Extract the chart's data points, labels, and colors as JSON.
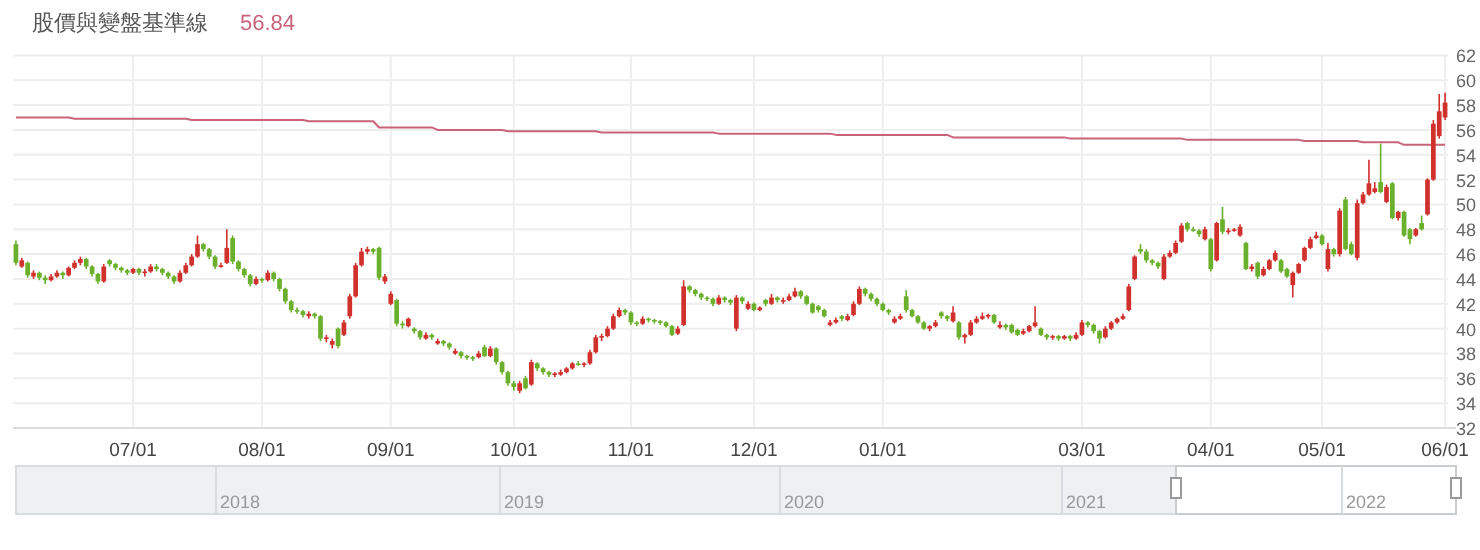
{
  "chart_data": {
    "type": "candlestick",
    "categories": [
      null,
      null,
      null,
      null,
      null,
      null,
      null,
      null,
      null,
      null,
      null,
      null,
      null,
      null,
      null,
      null,
      null,
      null,
      null,
      null,
      "07/01",
      null,
      null,
      null,
      null,
      null,
      null,
      null,
      null,
      null,
      null,
      null,
      null,
      null,
      null,
      null,
      null,
      null,
      null,
      null,
      null,
      null,
      "08/01",
      null,
      null,
      null,
      null,
      null,
      null,
      null,
      null,
      null,
      null,
      null,
      null,
      null,
      null,
      null,
      null,
      null,
      null,
      null,
      null,
      null,
      "09/01",
      null,
      null,
      null,
      null,
      null,
      null,
      null,
      null,
      null,
      null,
      null,
      null,
      null,
      null,
      null,
      null,
      null,
      null,
      null,
      null,
      "10/01",
      null,
      null,
      null,
      null,
      null,
      null,
      null,
      null,
      null,
      null,
      null,
      null,
      null,
      null,
      null,
      null,
      null,
      null,
      null,
      "11/01",
      null,
      null,
      null,
      null,
      null,
      null,
      null,
      null,
      null,
      null,
      null,
      null,
      null,
      null,
      null,
      null,
      null,
      null,
      null,
      null,
      "12/01",
      null,
      null,
      null,
      null,
      null,
      null,
      null,
      null,
      null,
      null,
      null,
      null,
      null,
      null,
      null,
      null,
      null,
      null,
      null,
      null,
      null,
      "01/01",
      null,
      null,
      null,
      null,
      null,
      null,
      null,
      null,
      null,
      null,
      null,
      null,
      null,
      null,
      null,
      null,
      null,
      null,
      null,
      null,
      null,
      null,
      null,
      null,
      null,
      null,
      null,
      null,
      null,
      null,
      null,
      null,
      null,
      "03/01",
      null,
      null,
      null,
      null,
      null,
      null,
      null,
      null,
      null,
      null,
      null,
      null,
      null,
      null,
      null,
      null,
      null,
      null,
      null,
      null,
      null,
      "04/01",
      null,
      null,
      null,
      null,
      null,
      null,
      null,
      null,
      null,
      null,
      null,
      null,
      null,
      null,
      null,
      null,
      null,
      null,
      "05/01",
      null,
      null,
      null,
      null,
      null,
      null,
      null,
      null,
      null,
      null,
      null,
      null,
      null,
      null,
      null,
      null,
      null,
      null,
      null,
      null,
      "06/01"
    ],
    "ohlc": [
      [
        46.8,
        47.1,
        45.1,
        45.3
      ],
      [
        45.0,
        45.7,
        44.9,
        45.5
      ],
      [
        45.3,
        45.4,
        44.1,
        44.3
      ],
      [
        44.2,
        44.7,
        44.0,
        44.5
      ],
      [
        44.5,
        44.6,
        43.9,
        44.1
      ],
      [
        44.1,
        44.3,
        43.6,
        43.9
      ],
      [
        43.9,
        44.4,
        43.8,
        44.2
      ],
      [
        44.2,
        44.7,
        44.1,
        44.5
      ],
      [
        44.5,
        44.6,
        44.0,
        44.3
      ],
      [
        44.3,
        45.0,
        44.2,
        44.9
      ],
      [
        44.9,
        45.5,
        44.8,
        45.3
      ],
      [
        45.3,
        45.8,
        45.1,
        45.6
      ],
      [
        45.6,
        45.7,
        44.8,
        45.0
      ],
      [
        45.0,
        45.1,
        44.2,
        44.4
      ],
      [
        44.4,
        44.5,
        43.6,
        43.8
      ],
      [
        43.8,
        45.2,
        43.7,
        45.0
      ],
      [
        45.5,
        45.6,
        45.0,
        45.2
      ],
      [
        45.2,
        45.3,
        44.7,
        44.9
      ],
      [
        44.9,
        45.0,
        44.5,
        44.7
      ],
      [
        44.7,
        44.8,
        44.3,
        44.5
      ],
      [
        44.5,
        44.9,
        44.4,
        44.8
      ],
      [
        44.8,
        44.9,
        44.3,
        44.5
      ],
      [
        44.5,
        44.8,
        44.2,
        44.6
      ],
      [
        44.6,
        45.2,
        44.5,
        45.0
      ],
      [
        45.0,
        45.2,
        44.6,
        44.8
      ],
      [
        44.8,
        44.9,
        44.3,
        44.5
      ],
      [
        44.5,
        44.6,
        44.0,
        44.2
      ],
      [
        44.2,
        44.3,
        43.6,
        43.8
      ],
      [
        43.8,
        44.7,
        43.7,
        44.5
      ],
      [
        44.5,
        45.3,
        44.4,
        45.1
      ],
      [
        45.1,
        46.0,
        45.0,
        45.8
      ],
      [
        45.8,
        47.5,
        45.7,
        46.8
      ],
      [
        46.8,
        46.9,
        46.2,
        46.4
      ],
      [
        46.4,
        46.5,
        45.6,
        45.8
      ],
      [
        45.8,
        45.9,
        44.8,
        45.0
      ],
      [
        45.0,
        45.3,
        44.9,
        45.1
      ],
      [
        45.3,
        48.0,
        45.2,
        46.5
      ],
      [
        47.3,
        47.5,
        45.2,
        45.4
      ],
      [
        45.4,
        45.5,
        44.6,
        44.8
      ],
      [
        44.8,
        44.9,
        44.1,
        44.3
      ],
      [
        44.3,
        44.4,
        43.4,
        43.6
      ],
      [
        43.6,
        44.2,
        43.5,
        44.0
      ],
      [
        44.0,
        44.1,
        43.7,
        43.9
      ],
      [
        43.9,
        44.7,
        43.8,
        44.5
      ],
      [
        44.5,
        44.6,
        43.8,
        44.0
      ],
      [
        44.0,
        44.1,
        43.0,
        43.2
      ],
      [
        43.2,
        43.3,
        42.0,
        42.2
      ],
      [
        42.2,
        42.3,
        41.3,
        41.5
      ],
      [
        41.5,
        41.7,
        41.2,
        41.4
      ],
      [
        41.4,
        41.5,
        40.9,
        41.1
      ],
      [
        41.0,
        41.4,
        40.8,
        41.2
      ],
      [
        41.2,
        41.3,
        40.8,
        41.0
      ],
      [
        41.0,
        41.1,
        39.0,
        39.2
      ],
      [
        39.2,
        39.5,
        38.9,
        39.3
      ],
      [
        38.7,
        39.2,
        38.4,
        39.0
      ],
      [
        40.0,
        40.1,
        38.4,
        38.6
      ],
      [
        39.5,
        40.7,
        39.4,
        40.5
      ],
      [
        41.0,
        42.8,
        40.8,
        42.6
      ],
      [
        42.6,
        45.3,
        42.5,
        45.1
      ],
      [
        45.1,
        46.5,
        45.0,
        46.2
      ],
      [
        46.2,
        46.6,
        46.0,
        46.4
      ],
      [
        46.4,
        46.5,
        46.0,
        46.2
      ],
      [
        46.5,
        46.6,
        43.9,
        44.1
      ],
      [
        43.8,
        44.4,
        43.6,
        44.2
      ],
      [
        42.0,
        43.0,
        41.9,
        42.8
      ],
      [
        42.3,
        42.4,
        40.2,
        40.4
      ],
      [
        40.4,
        40.6,
        40.0,
        40.3
      ],
      [
        40.2,
        40.9,
        40.1,
        40.8
      ],
      [
        40.0,
        40.1,
        39.6,
        39.8
      ],
      [
        39.8,
        39.9,
        39.1,
        39.3
      ],
      [
        39.2,
        39.7,
        39.1,
        39.5
      ],
      [
        39.5,
        39.6,
        39.1,
        39.3
      ],
      [
        38.8,
        39.2,
        38.7,
        39.0
      ],
      [
        39.0,
        39.1,
        38.6,
        38.8
      ],
      [
        38.8,
        38.9,
        38.3,
        38.5
      ],
      [
        38.0,
        38.4,
        37.9,
        38.2
      ],
      [
        38.1,
        38.2,
        37.6,
        37.8
      ],
      [
        37.8,
        37.9,
        37.5,
        37.7
      ],
      [
        37.7,
        37.8,
        37.4,
        37.6
      ],
      [
        37.7,
        38.2,
        37.6,
        38.0
      ],
      [
        38.5,
        38.7,
        37.7,
        37.8
      ],
      [
        37.8,
        38.6,
        37.7,
        38.4
      ],
      [
        38.4,
        38.5,
        37.1,
        37.3
      ],
      [
        37.3,
        37.4,
        36.3,
        36.5
      ],
      [
        36.5,
        36.6,
        35.4,
        35.6
      ],
      [
        35.6,
        35.8,
        35.0,
        35.3
      ],
      [
        35.0,
        35.8,
        34.8,
        35.6
      ],
      [
        36.0,
        36.2,
        35.1,
        35.2
      ],
      [
        35.5,
        37.5,
        35.4,
        37.3
      ],
      [
        37.2,
        37.3,
        36.6,
        36.8
      ],
      [
        36.8,
        36.9,
        36.3,
        36.5
      ],
      [
        36.5,
        36.6,
        36.1,
        36.3
      ],
      [
        36.3,
        36.5,
        36.1,
        36.4
      ],
      [
        36.3,
        36.7,
        36.2,
        36.5
      ],
      [
        36.5,
        36.9,
        36.4,
        36.8
      ],
      [
        36.8,
        37.3,
        36.7,
        37.2
      ],
      [
        37.2,
        37.4,
        37.0,
        37.1
      ],
      [
        37.1,
        37.3,
        36.9,
        37.2
      ],
      [
        37.2,
        38.3,
        37.1,
        38.1
      ],
      [
        38.1,
        39.5,
        38.0,
        39.3
      ],
      [
        39.3,
        39.6,
        39.0,
        39.4
      ],
      [
        39.4,
        40.2,
        39.3,
        40.0
      ],
      [
        40.0,
        41.2,
        39.9,
        41.0
      ],
      [
        41.0,
        41.7,
        40.9,
        41.5
      ],
      [
        41.5,
        41.6,
        41.1,
        41.3
      ],
      [
        41.3,
        41.4,
        40.3,
        40.5
      ],
      [
        40.5,
        40.6,
        40.2,
        40.4
      ],
      [
        40.4,
        41.0,
        40.3,
        40.8
      ],
      [
        40.8,
        40.9,
        40.5,
        40.7
      ],
      [
        40.7,
        40.8,
        40.4,
        40.6
      ],
      [
        40.6,
        40.7,
        40.3,
        40.5
      ],
      [
        40.5,
        40.6,
        40.1,
        40.2
      ],
      [
        40.2,
        40.3,
        39.4,
        39.5
      ],
      [
        39.6,
        40.2,
        39.5,
        40.0
      ],
      [
        40.3,
        43.9,
        40.2,
        43.4
      ],
      [
        43.4,
        43.5,
        42.9,
        43.1
      ],
      [
        43.1,
        43.2,
        42.6,
        42.8
      ],
      [
        42.8,
        42.9,
        42.3,
        42.5
      ],
      [
        42.5,
        42.6,
        42.2,
        42.4
      ],
      [
        42.4,
        42.5,
        41.8,
        42.0
      ],
      [
        42.0,
        42.7,
        41.9,
        42.5
      ],
      [
        42.5,
        42.6,
        42.1,
        42.3
      ],
      [
        42.3,
        42.4,
        41.9,
        42.1
      ],
      [
        40.0,
        42.7,
        39.8,
        42.5
      ],
      [
        42.5,
        42.6,
        42.0,
        42.2
      ],
      [
        41.6,
        42.2,
        41.5,
        42.0
      ],
      [
        42.0,
        42.1,
        41.4,
        41.5
      ],
      [
        41.5,
        41.8,
        41.4,
        41.7
      ],
      [
        42.3,
        42.4,
        41.8,
        42.0
      ],
      [
        42.0,
        42.8,
        41.9,
        42.5
      ],
      [
        42.5,
        42.6,
        42.1,
        42.3
      ],
      [
        42.3,
        42.5,
        42.0,
        42.3
      ],
      [
        42.3,
        42.8,
        42.2,
        42.6
      ],
      [
        42.6,
        43.3,
        42.5,
        43.0
      ],
      [
        43.0,
        43.1,
        42.4,
        42.6
      ],
      [
        42.6,
        42.7,
        41.9,
        42.0
      ],
      [
        42.0,
        42.1,
        41.2,
        41.3
      ],
      [
        41.8,
        41.9,
        41.3,
        41.5
      ],
      [
        41.5,
        41.6,
        40.9,
        41.0
      ],
      [
        40.3,
        40.7,
        40.2,
        40.5
      ],
      [
        40.5,
        40.9,
        40.4,
        40.7
      ],
      [
        41.0,
        41.1,
        40.6,
        40.8
      ],
      [
        40.7,
        41.2,
        40.6,
        41.0
      ],
      [
        41.1,
        42.2,
        41.0,
        42.0
      ],
      [
        42.0,
        43.4,
        41.9,
        43.2
      ],
      [
        43.2,
        43.3,
        42.6,
        42.8
      ],
      [
        42.8,
        42.9,
        42.2,
        42.4
      ],
      [
        42.4,
        42.5,
        41.8,
        42.0
      ],
      [
        42.0,
        42.1,
        41.4,
        41.5
      ],
      [
        41.5,
        41.6,
        41.1,
        41.3
      ],
      [
        40.5,
        41.0,
        40.4,
        40.8
      ],
      [
        40.8,
        41.2,
        40.7,
        41.0
      ],
      [
        42.6,
        43.1,
        41.3,
        41.5
      ],
      [
        41.5,
        41.6,
        40.9,
        41.0
      ],
      [
        41.0,
        41.1,
        40.4,
        40.5
      ],
      [
        40.5,
        40.6,
        39.9,
        40.0
      ],
      [
        40.0,
        40.3,
        39.8,
        40.2
      ],
      [
        40.2,
        40.7,
        40.1,
        40.5
      ],
      [
        41.3,
        41.4,
        40.8,
        41.0
      ],
      [
        41.0,
        41.1,
        40.6,
        40.8
      ],
      [
        40.6,
        41.8,
        40.5,
        41.3
      ],
      [
        40.5,
        40.6,
        39.1,
        39.3
      ],
      [
        39.3,
        39.6,
        38.8,
        39.5
      ],
      [
        39.5,
        40.7,
        39.4,
        40.5
      ],
      [
        40.5,
        41.0,
        40.4,
        40.8
      ],
      [
        40.8,
        41.3,
        40.7,
        41.0
      ],
      [
        41.0,
        41.2,
        40.8,
        41.1
      ],
      [
        41.1,
        41.2,
        40.4,
        40.5
      ],
      [
        40.1,
        40.6,
        40.0,
        40.3
      ],
      [
        40.3,
        40.4,
        39.9,
        40.1
      ],
      [
        40.3,
        40.4,
        39.6,
        39.7
      ],
      [
        39.9,
        40.0,
        39.4,
        39.5
      ],
      [
        39.6,
        40.0,
        39.5,
        39.8
      ],
      [
        39.8,
        40.3,
        39.7,
        40.2
      ],
      [
        40.2,
        41.8,
        40.1,
        40.5
      ],
      [
        40.0,
        40.1,
        39.4,
        39.5
      ],
      [
        39.5,
        39.6,
        39.1,
        39.3
      ],
      [
        39.3,
        39.5,
        39.1,
        39.4
      ],
      [
        39.4,
        39.5,
        39.0,
        39.2
      ],
      [
        39.2,
        39.5,
        39.1,
        39.4
      ],
      [
        39.4,
        39.5,
        39.0,
        39.2
      ],
      [
        39.2,
        39.7,
        39.1,
        39.5
      ],
      [
        39.5,
        40.7,
        39.4,
        40.5
      ],
      [
        40.5,
        40.6,
        40.1,
        40.3
      ],
      [
        40.3,
        40.4,
        39.6,
        39.8
      ],
      [
        39.8,
        39.9,
        38.8,
        39.2
      ],
      [
        39.3,
        40.2,
        39.2,
        40.0
      ],
      [
        40.0,
        40.6,
        39.9,
        40.5
      ],
      [
        40.5,
        40.9,
        40.4,
        40.8
      ],
      [
        40.8,
        41.2,
        40.7,
        41.0
      ],
      [
        41.5,
        43.6,
        41.4,
        43.4
      ],
      [
        44.0,
        45.9,
        43.9,
        45.8
      ],
      [
        46.4,
        46.8,
        46.0,
        46.2
      ],
      [
        46.2,
        46.4,
        45.3,
        45.5
      ],
      [
        45.5,
        45.6,
        45.1,
        45.3
      ],
      [
        45.3,
        45.4,
        44.8,
        45.0
      ],
      [
        44.0,
        46.0,
        43.9,
        45.8
      ],
      [
        45.8,
        46.3,
        45.7,
        46.1
      ],
      [
        46.1,
        47.1,
        46.0,
        46.9
      ],
      [
        47.0,
        48.5,
        46.9,
        48.3
      ],
      [
        48.5,
        48.6,
        47.8,
        48.0
      ],
      [
        48.0,
        48.2,
        47.8,
        47.9
      ],
      [
        47.9,
        48.0,
        47.4,
        47.6
      ],
      [
        47.2,
        48.2,
        47.1,
        48.0
      ],
      [
        47.2,
        47.3,
        44.6,
        44.8
      ],
      [
        45.5,
        48.6,
        45.4,
        48.5
      ],
      [
        48.8,
        49.8,
        47.6,
        47.8
      ],
      [
        47.8,
        48.1,
        47.6,
        47.9
      ],
      [
        47.9,
        48.1,
        47.8,
        48.0
      ],
      [
        47.5,
        48.4,
        47.4,
        48.2
      ],
      [
        46.9,
        47.0,
        44.7,
        44.8
      ],
      [
        44.8,
        45.2,
        44.6,
        45.0
      ],
      [
        45.3,
        45.4,
        44.0,
        44.2
      ],
      [
        44.3,
        45.0,
        44.2,
        44.8
      ],
      [
        44.8,
        45.6,
        44.7,
        45.5
      ],
      [
        45.5,
        46.3,
        45.4,
        46.1
      ],
      [
        45.5,
        45.6,
        44.5,
        44.6
      ],
      [
        44.8,
        44.9,
        44.1,
        44.2
      ],
      [
        43.5,
        44.6,
        42.5,
        44.5
      ],
      [
        44.5,
        45.3,
        44.4,
        45.2
      ],
      [
        45.5,
        46.6,
        45.4,
        46.5
      ],
      [
        46.5,
        47.4,
        46.4,
        47.2
      ],
      [
        47.3,
        47.8,
        47.2,
        47.5
      ],
      [
        47.5,
        47.6,
        46.7,
        46.8
      ],
      [
        44.8,
        46.9,
        44.6,
        46.4
      ],
      [
        46.4,
        46.5,
        45.8,
        46.0
      ],
      [
        46.0,
        49.7,
        45.8,
        49.5
      ],
      [
        50.4,
        50.6,
        46.3,
        46.4
      ],
      [
        46.8,
        47.0,
        45.9,
        46.0
      ],
      [
        45.7,
        50.4,
        45.5,
        50.1
      ],
      [
        50.1,
        51.0,
        50.0,
        50.8
      ],
      [
        50.8,
        53.6,
        50.7,
        51.7
      ],
      [
        51.0,
        51.8,
        50.9,
        51.3
      ],
      [
        51.8,
        54.9,
        50.9,
        51.0
      ],
      [
        50.2,
        51.6,
        50.1,
        51.4
      ],
      [
        51.7,
        51.8,
        48.8,
        48.9
      ],
      [
        48.9,
        49.5,
        48.7,
        49.4
      ],
      [
        49.4,
        49.5,
        47.4,
        47.5
      ],
      [
        48.0,
        48.1,
        46.8,
        47.2
      ],
      [
        47.5,
        48.1,
        47.4,
        48.0
      ],
      [
        48.5,
        49.1,
        47.9,
        48.0
      ],
      [
        49.2,
        52.1,
        49.1,
        52.0
      ],
      [
        52.0,
        56.8,
        51.9,
        56.5
      ],
      [
        55.5,
        58.9,
        55.3,
        57.5
      ],
      [
        57.0,
        59.0,
        56.8,
        58.2
      ]
    ],
    "colors": [
      "#6ab02c",
      "#d0312d",
      "#6ab02c",
      "#d0312d",
      "#6ab02c",
      "#6ab02c",
      "#d0312d",
      "#d0312d",
      "#6ab02c",
      "#d0312d",
      "#d0312d",
      "#d0312d",
      "#6ab02c",
      "#6ab02c",
      "#6ab02c",
      "#d0312d",
      "#6ab02c",
      "#6ab02c",
      "#6ab02c",
      "#6ab02c",
      "#d0312d",
      "#6ab02c",
      "#d0312d",
      "#d0312d",
      "#6ab02c",
      "#6ab02c",
      "#6ab02c",
      "#6ab02c",
      "#d0312d",
      "#d0312d",
      "#d0312d",
      "#d0312d",
      "#6ab02c",
      "#6ab02c",
      "#6ab02c",
      "#d0312d",
      "#d0312d",
      "#6ab02c",
      "#6ab02c",
      "#6ab02c",
      "#6ab02c",
      "#d0312d",
      "#6ab02c",
      "#d0312d",
      "#6ab02c",
      "#6ab02c",
      "#6ab02c",
      "#6ab02c",
      "#6ab02c",
      "#6ab02c",
      "#d0312d",
      "#6ab02c",
      "#6ab02c",
      "#d0312d",
      "#d0312d",
      "#6ab02c",
      "#d0312d",
      "#d0312d",
      "#d0312d",
      "#d0312d",
      "#d0312d",
      "#6ab02c",
      "#6ab02c",
      "#d0312d",
      "#d0312d",
      "#6ab02c",
      "#6ab02c",
      "#d0312d",
      "#6ab02c",
      "#6ab02c",
      "#d0312d",
      "#6ab02c",
      "#d0312d",
      "#6ab02c",
      "#6ab02c",
      "#d0312d",
      "#6ab02c",
      "#6ab02c",
      "#6ab02c",
      "#d0312d",
      "#6ab02c",
      "#d0312d",
      "#6ab02c",
      "#6ab02c",
      "#6ab02c",
      "#6ab02c",
      "#d0312d",
      "#6ab02c",
      "#d0312d",
      "#6ab02c",
      "#6ab02c",
      "#6ab02c",
      "#d0312d",
      "#d0312d",
      "#d0312d",
      "#d0312d",
      "#6ab02c",
      "#d0312d",
      "#d0312d",
      "#d0312d",
      "#d0312d",
      "#d0312d",
      "#d0312d",
      "#d0312d",
      "#6ab02c",
      "#6ab02c",
      "#6ab02c",
      "#d0312d",
      "#6ab02c",
      "#6ab02c",
      "#6ab02c",
      "#6ab02c",
      "#6ab02c",
      "#d0312d",
      "#d0312d",
      "#6ab02c",
      "#6ab02c",
      "#6ab02c",
      "#6ab02c",
      "#6ab02c",
      "#d0312d",
      "#6ab02c",
      "#6ab02c",
      "#d0312d",
      "#6ab02c",
      "#d0312d",
      "#6ab02c",
      "#d0312d",
      "#6ab02c",
      "#d0312d",
      "#6ab02c",
      "#d0312d",
      "#d0312d",
      "#d0312d",
      "#6ab02c",
      "#6ab02c",
      "#6ab02c",
      "#6ab02c",
      "#6ab02c",
      "#d0312d",
      "#d0312d",
      "#6ab02c",
      "#d0312d",
      "#d0312d",
      "#d0312d",
      "#6ab02c",
      "#6ab02c",
      "#6ab02c",
      "#6ab02c",
      "#6ab02c",
      "#d0312d",
      "#d0312d",
      "#6ab02c",
      "#6ab02c",
      "#6ab02c",
      "#6ab02c",
      "#d0312d",
      "#d0312d",
      "#6ab02c",
      "#6ab02c",
      "#d0312d",
      "#6ab02c",
      "#d0312d",
      "#d0312d",
      "#d0312d",
      "#d0312d",
      "#d0312d",
      "#6ab02c",
      "#d0312d",
      "#6ab02c",
      "#6ab02c",
      "#6ab02c",
      "#d0312d",
      "#d0312d",
      "#d0312d",
      "#6ab02c",
      "#6ab02c",
      "#d0312d",
      "#6ab02c",
      "#d0312d",
      "#6ab02c",
      "#d0312d",
      "#d0312d",
      "#6ab02c",
      "#6ab02c",
      "#6ab02c",
      "#d0312d",
      "#d0312d",
      "#d0312d",
      "#d0312d",
      "#d0312d",
      "#d0312d",
      "#6ab02c",
      "#6ab02c",
      "#6ab02c",
      "#6ab02c",
      "#d0312d",
      "#d0312d",
      "#d0312d",
      "#d0312d",
      "#6ab02c",
      "#6ab02c",
      "#6ab02c",
      "#d0312d",
      "#6ab02c",
      "#d0312d",
      "#6ab02c",
      "#d0312d",
      "#d0312d",
      "#d0312d",
      "#6ab02c",
      "#d0312d",
      "#6ab02c",
      "#d0312d",
      "#d0312d",
      "#d0312d",
      "#6ab02c",
      "#6ab02c",
      "#d0312d",
      "#d0312d",
      "#d0312d",
      "#d0312d",
      "#d0312d",
      "#6ab02c",
      "#d0312d",
      "#6ab02c",
      "#d0312d",
      "#6ab02c",
      "#6ab02c",
      "#d0312d",
      "#d0312d",
      "#d0312d",
      "#d0312d",
      "#6ab02c",
      "#d0312d",
      "#6ab02c",
      "#d0312d",
      "#6ab02c",
      "#6ab02c",
      "#d0312d",
      "#6ab02c",
      "#d0312d",
      "#d0312d",
      "#d0312d",
      "#d0312d"
    ],
    "series": [
      {
        "name": "股價與變盤基準線",
        "type": "line",
        "color": "#c9637a",
        "values": [
          57.0,
          57.0,
          57.0,
          57.0,
          57.0,
          57.0,
          57.0,
          57.0,
          57.0,
          57.0,
          56.9,
          56.9,
          56.9,
          56.9,
          56.9,
          56.9,
          56.9,
          56.9,
          56.9,
          56.9,
          56.9,
          56.9,
          56.9,
          56.9,
          56.9,
          56.9,
          56.9,
          56.9,
          56.9,
          56.9,
          56.8,
          56.8,
          56.8,
          56.8,
          56.8,
          56.8,
          56.8,
          56.8,
          56.8,
          56.8,
          56.8,
          56.8,
          56.8,
          56.8,
          56.8,
          56.8,
          56.8,
          56.8,
          56.8,
          56.8,
          56.7,
          56.7,
          56.7,
          56.7,
          56.7,
          56.7,
          56.7,
          56.7,
          56.7,
          56.7,
          56.7,
          56.7,
          56.2,
          56.2,
          56.2,
          56.2,
          56.2,
          56.2,
          56.2,
          56.2,
          56.2,
          56.2,
          56.0,
          56.0,
          56.0,
          56.0,
          56.0,
          56.0,
          56.0,
          56.0,
          56.0,
          56.0,
          56.0,
          56.0,
          55.9,
          55.9,
          55.9,
          55.9,
          55.9,
          55.9,
          55.9,
          55.9,
          55.9,
          55.9,
          55.9,
          55.9,
          55.9,
          55.9,
          55.9,
          55.9,
          55.8,
          55.8,
          55.8,
          55.8,
          55.8,
          55.8,
          55.8,
          55.8,
          55.8,
          55.8,
          55.8,
          55.8,
          55.8,
          55.8,
          55.8,
          55.8,
          55.8,
          55.8,
          55.8,
          55.8,
          55.7,
          55.7,
          55.7,
          55.7,
          55.7,
          55.7,
          55.7,
          55.7,
          55.7,
          55.7,
          55.7,
          55.7,
          55.7,
          55.7,
          55.7,
          55.7,
          55.7,
          55.7,
          55.7,
          55.7,
          55.6,
          55.6,
          55.6,
          55.6,
          55.6,
          55.6,
          55.6,
          55.6,
          55.6,
          55.6,
          55.6,
          55.6,
          55.6,
          55.6,
          55.6,
          55.6,
          55.6,
          55.6,
          55.6,
          55.6,
          55.4,
          55.4,
          55.4,
          55.4,
          55.4,
          55.4,
          55.4,
          55.4,
          55.4,
          55.4,
          55.4,
          55.4,
          55.4,
          55.4,
          55.4,
          55.4,
          55.4,
          55.4,
          55.4,
          55.4,
          55.3,
          55.3,
          55.3,
          55.3,
          55.3,
          55.3,
          55.3,
          55.3,
          55.3,
          55.3,
          55.3,
          55.3,
          55.3,
          55.3,
          55.3,
          55.3,
          55.3,
          55.3,
          55.3,
          55.3,
          55.2,
          55.2,
          55.2,
          55.2,
          55.2,
          55.2,
          55.2,
          55.2,
          55.2,
          55.2,
          55.2,
          55.2,
          55.2,
          55.2,
          55.2,
          55.2,
          55.2,
          55.2,
          55.2,
          55.2,
          55.1,
          55.1,
          55.1,
          55.1,
          55.1,
          55.1,
          55.1,
          55.1,
          55.1,
          55.1,
          55.0,
          55.0,
          55.0,
          55.0,
          55.0,
          55.0,
          55.0,
          54.8,
          54.8,
          54.8,
          54.8,
          54.8,
          54.8,
          54.8,
          54.8
        ]
      }
    ],
    "annotations": [
      "56.84",
      "2018",
      "2019",
      "2020",
      "2021",
      "2022"
    ],
    "ylim": [
      32,
      62
    ],
    "yticks": [
      32,
      34,
      36,
      38,
      40,
      42,
      44,
      46,
      48,
      50,
      52,
      54,
      56,
      58,
      60,
      62
    ],
    "grid": true,
    "legend": "top left"
  }
}
